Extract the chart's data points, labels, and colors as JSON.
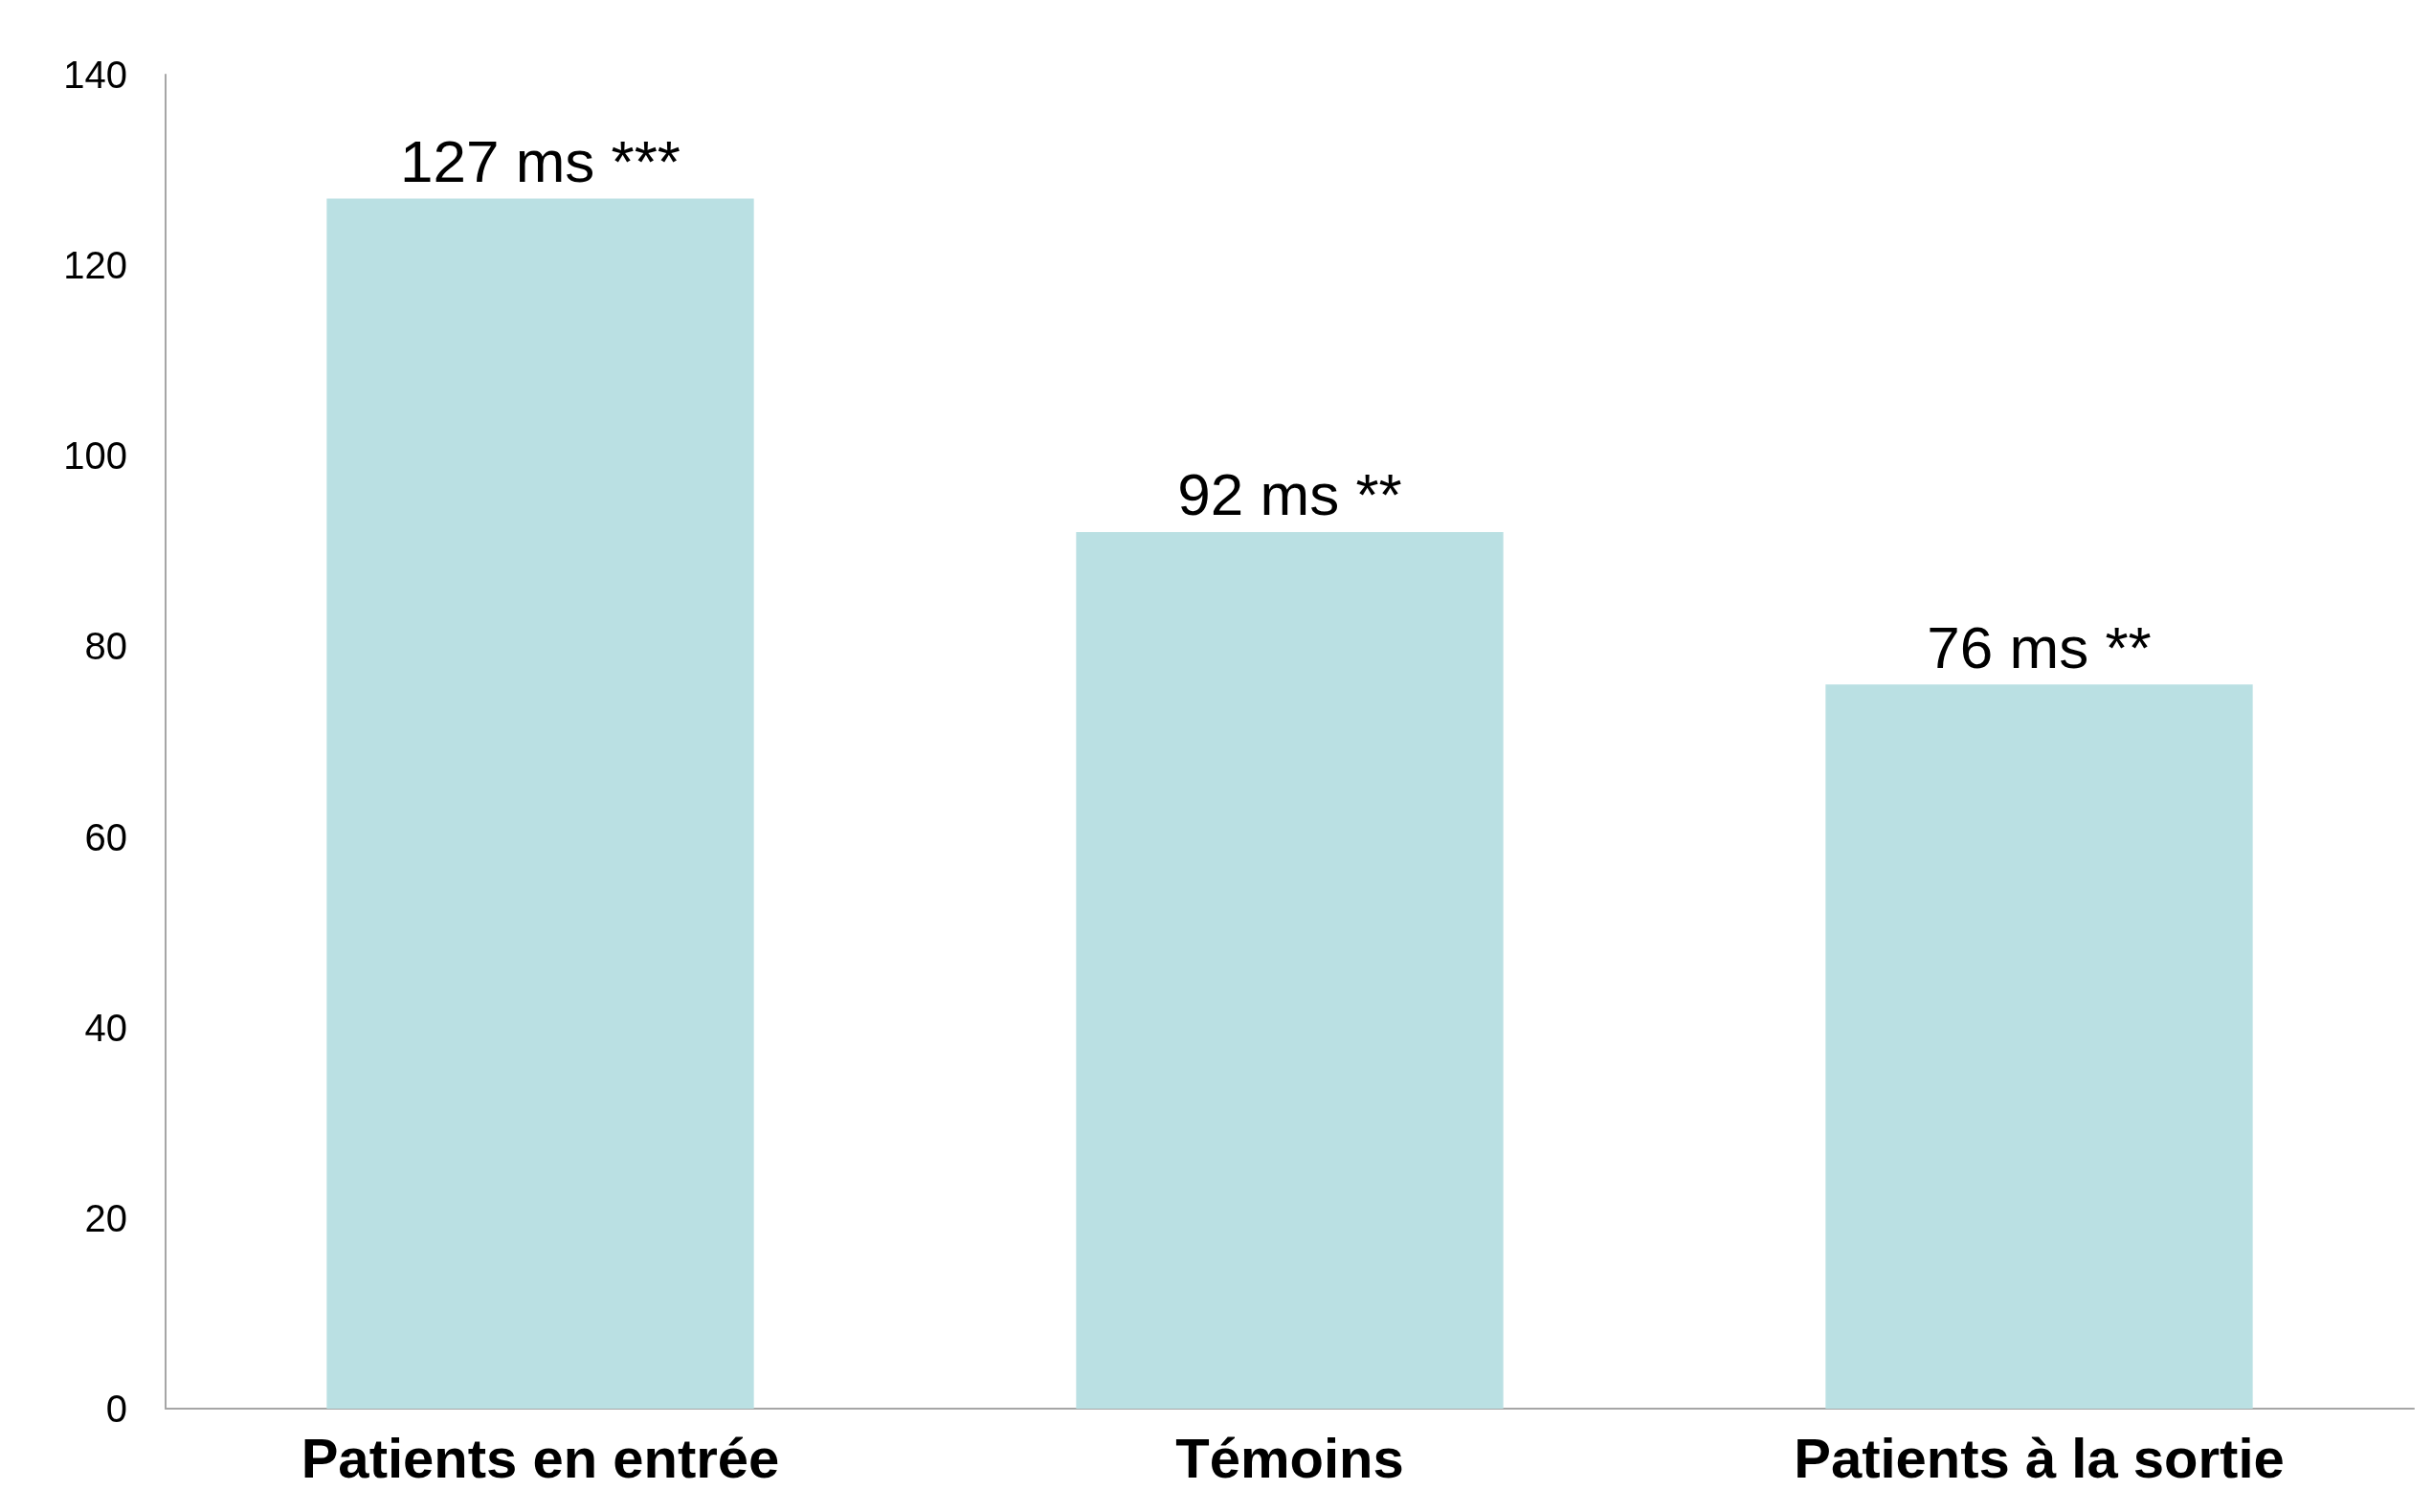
{
  "chart_data": {
    "type": "bar",
    "categories": [
      "Patients en entrée",
      "Témoins",
      "Patients à la sortie"
    ],
    "values": [
      127,
      92,
      76
    ],
    "value_labels": [
      "127 ms ***",
      "92 ms **",
      "76 ms **"
    ],
    "color": "#bae0e3",
    "ylim": [
      0,
      140
    ],
    "yticks": [
      0,
      20,
      40,
      60,
      80,
      100,
      120,
      140
    ],
    "grid": false
  }
}
